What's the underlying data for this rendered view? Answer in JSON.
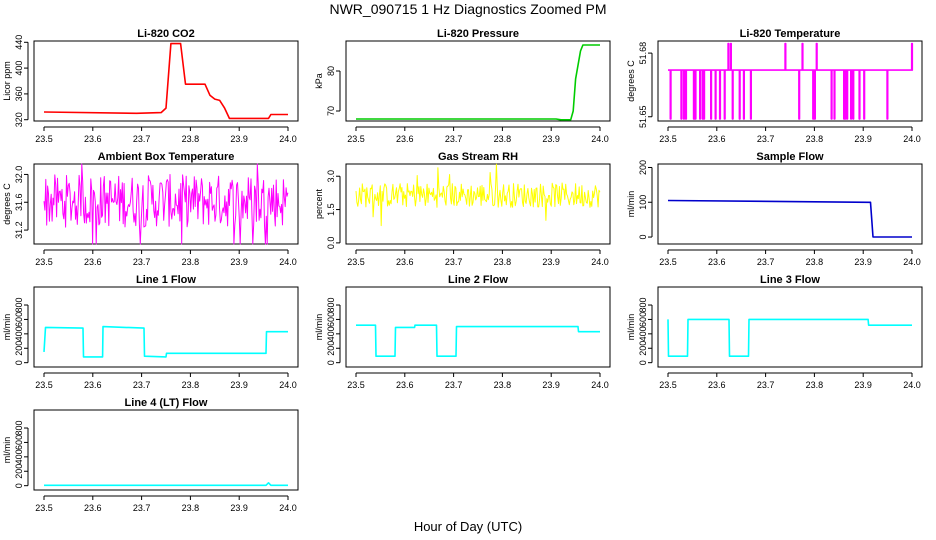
{
  "figure": {
    "title": "NWR_090715  1 Hz Diagnostics Zoomed PM",
    "xlabel": "Hour of Day (UTC)"
  },
  "chart_data": [
    {
      "type": "line",
      "title": "Li-820 CO2",
      "ylabel": "Licor ppm",
      "color": "#ff0000",
      "xlim": [
        23.5,
        24.0
      ],
      "ylim": [
        318,
        442
      ],
      "x_ticks": [
        "23.5",
        "23.6",
        "23.7",
        "23.8",
        "23.9",
        "24.0"
      ],
      "y_ticks": [
        {
          "v": 320,
          "label": "320"
        },
        {
          "v": 360,
          "label": "360"
        },
        {
          "v": 400,
          "label": "400"
        },
        {
          "v": 440,
          "label": "440"
        }
      ],
      "series": [
        {
          "x": [
            23.5,
            23.69,
            23.74,
            23.75,
            23.76,
            23.78,
            23.79,
            23.83,
            23.84,
            23.85,
            23.86,
            23.87,
            23.88,
            23.96,
            23.965,
            24.0
          ],
          "values": [
            332,
            330,
            331,
            338,
            438,
            438,
            375,
            375,
            358,
            352,
            350,
            338,
            322,
            322,
            328,
            328
          ]
        }
      ]
    },
    {
      "type": "line",
      "title": "Li-820 Pressure",
      "ylabel": "kPa",
      "color": "#00cc00",
      "xlim": [
        23.5,
        24.0
      ],
      "ylim": [
        67.5,
        87.5
      ],
      "x_ticks": [
        "23.5",
        "23.6",
        "23.7",
        "23.8",
        "23.9",
        "24.0"
      ],
      "y_ticks": [
        {
          "v": 70,
          "label": "70"
        },
        {
          "v": 80,
          "label": "80"
        }
      ],
      "series": [
        {
          "x": [
            23.5,
            23.91,
            23.92,
            23.94,
            23.945,
            23.95,
            23.96,
            23.965,
            23.97,
            24.0
          ],
          "values": [
            68,
            68,
            67.8,
            67.8,
            70,
            78,
            85,
            86.5,
            86.5,
            86.5
          ]
        }
      ]
    },
    {
      "type": "line",
      "title": "Li-820 Temperature",
      "ylabel": "degrees C",
      "color": "#ff00ff",
      "xlim": [
        23.5,
        24.0
      ],
      "ylim": [
        51.648,
        51.6857
      ],
      "x_ticks": [
        "23.5",
        "23.6",
        "23.7",
        "23.8",
        "23.9",
        "24.0"
      ],
      "y_ticks": [
        {
          "v": 51.65,
          "label": "51.65"
        },
        {
          "v": 51.68,
          "label": "51.68"
        }
      ],
      "series": [
        {
          "x": [
            23.5,
            24.0
          ],
          "values": [
            51.672,
            51.672
          ]
        }
      ]
    },
    {
      "type": "line",
      "title": "Ambient Box Temperature",
      "ylabel": "degrees C",
      "color": "#ff00ff",
      "xlim": [
        23.5,
        24.0
      ],
      "ylim": [
        31.0,
        32.15
      ],
      "x_ticks": [
        "23.5",
        "23.6",
        "23.7",
        "23.8",
        "23.9",
        "24.0"
      ],
      "y_ticks": [
        {
          "v": 31.2,
          "label": "31.2"
        },
        {
          "v": 31.6,
          "label": "31.6"
        },
        {
          "v": 32.0,
          "label": "32.0"
        }
      ],
      "series": [
        {
          "x": [
            23.5,
            24.0
          ],
          "values": [
            31.6,
            31.6
          ]
        }
      ]
    },
    {
      "type": "line",
      "title": "Gas Stream RH",
      "ylabel": "percent",
      "color": "#ffff00",
      "xlim": [
        23.5,
        24.0
      ],
      "ylim": [
        -0.05,
        3.55
      ],
      "x_ticks": [
        "23.5",
        "23.6",
        "23.7",
        "23.8",
        "23.9",
        "24.0"
      ],
      "y_ticks": [
        {
          "v": 0.0,
          "label": "0.0"
        },
        {
          "v": 1.5,
          "label": "1.5"
        },
        {
          "v": 3.0,
          "label": "3.0"
        }
      ],
      "series": [
        {
          "x": [
            23.5,
            24.0
          ],
          "values": [
            2.1,
            2.1
          ]
        }
      ]
    },
    {
      "type": "line",
      "title": "Sample Flow",
      "ylabel": "ml/min",
      "color": "#0000cc",
      "xlim": [
        23.5,
        24.0
      ],
      "ylim": [
        -20,
        210
      ],
      "x_ticks": [
        "23.5",
        "23.6",
        "23.7",
        "23.8",
        "23.9",
        "24.0"
      ],
      "y_ticks": [
        {
          "v": 0,
          "label": "0"
        },
        {
          "v": 100,
          "label": "100"
        },
        {
          "v": 200,
          "label": "200"
        }
      ],
      "series": [
        {
          "x": [
            23.5,
            23.91,
            23.915,
            23.92,
            24.0
          ],
          "values": [
            105,
            100,
            100,
            0,
            0
          ]
        }
      ]
    },
    {
      "type": "line",
      "title": "Line 1 Flow",
      "ylabel": "ml/min",
      "color": "#00ffff",
      "xlim": [
        23.5,
        24.0
      ],
      "ylim": [
        -60,
        1050
      ],
      "x_ticks": [
        "23.5",
        "23.6",
        "23.7",
        "23.8",
        "23.9",
        "24.0"
      ],
      "y_ticks": [
        {
          "v": 0,
          "label": "0"
        },
        {
          "v": 200,
          "label": "200"
        },
        {
          "v": 400,
          "label": "400"
        },
        {
          "v": 600,
          "label": "600"
        },
        {
          "v": 800,
          "label": "800"
        }
      ],
      "series": [
        {
          "x": [
            23.5,
            23.503,
            23.58,
            23.581,
            23.62,
            23.621,
            23.705,
            23.706,
            23.75,
            23.751,
            23.955,
            23.956,
            24.0
          ],
          "values": [
            150,
            490,
            480,
            80,
            80,
            500,
            480,
            90,
            80,
            130,
            130,
            430,
            430
          ]
        }
      ]
    },
    {
      "type": "line",
      "title": "Line 2 Flow",
      "ylabel": "ml/min",
      "color": "#00ffff",
      "xlim": [
        23.5,
        24.0
      ],
      "ylim": [
        -60,
        1050
      ],
      "x_ticks": [
        "23.5",
        "23.6",
        "23.7",
        "23.8",
        "23.9",
        "24.0"
      ],
      "y_ticks": [
        {
          "v": 0,
          "label": "0"
        },
        {
          "v": 200,
          "label": "200"
        },
        {
          "v": 400,
          "label": "400"
        },
        {
          "v": 600,
          "label": "600"
        },
        {
          "v": 800,
          "label": "800"
        }
      ],
      "series": [
        {
          "x": [
            23.5,
            23.54,
            23.541,
            23.58,
            23.581,
            23.62,
            23.621,
            23.665,
            23.666,
            23.705,
            23.706,
            23.955,
            23.956,
            24.0
          ],
          "values": [
            520,
            520,
            90,
            90,
            490,
            490,
            520,
            520,
            90,
            90,
            500,
            500,
            430,
            430
          ]
        }
      ]
    },
    {
      "type": "line",
      "title": "Line 3 Flow",
      "ylabel": "ml/min",
      "color": "#00ffff",
      "xlim": [
        23.5,
        24.0
      ],
      "ylim": [
        -60,
        1050
      ],
      "x_ticks": [
        "23.5",
        "23.6",
        "23.7",
        "23.8",
        "23.9",
        "24.0"
      ],
      "y_ticks": [
        {
          "v": 0,
          "label": "0"
        },
        {
          "v": 200,
          "label": "200"
        },
        {
          "v": 400,
          "label": "400"
        },
        {
          "v": 600,
          "label": "600"
        },
        {
          "v": 800,
          "label": "800"
        }
      ],
      "series": [
        {
          "x": [
            23.5,
            23.501,
            23.54,
            23.541,
            23.625,
            23.626,
            23.665,
            23.666,
            23.91,
            23.911,
            24.0
          ],
          "values": [
            600,
            90,
            90,
            600,
            600,
            90,
            90,
            600,
            600,
            520,
            520
          ]
        }
      ]
    },
    {
      "type": "line",
      "title": "Line 4 (LT) Flow",
      "ylabel": "ml/min",
      "color": "#00ffff",
      "xlim": [
        23.5,
        24.0
      ],
      "ylim": [
        -60,
        1050
      ],
      "x_ticks": [
        "23.5",
        "23.6",
        "23.7",
        "23.8",
        "23.9",
        "24.0"
      ],
      "y_ticks": [
        {
          "v": 0,
          "label": "0"
        },
        {
          "v": 200,
          "label": "200"
        },
        {
          "v": 400,
          "label": "400"
        },
        {
          "v": 600,
          "label": "600"
        },
        {
          "v": 800,
          "label": "800"
        }
      ],
      "series": [
        {
          "x": [
            23.5,
            23.955,
            23.96,
            23.965,
            24.0
          ],
          "values": [
            5,
            5,
            40,
            5,
            5
          ]
        }
      ]
    }
  ]
}
